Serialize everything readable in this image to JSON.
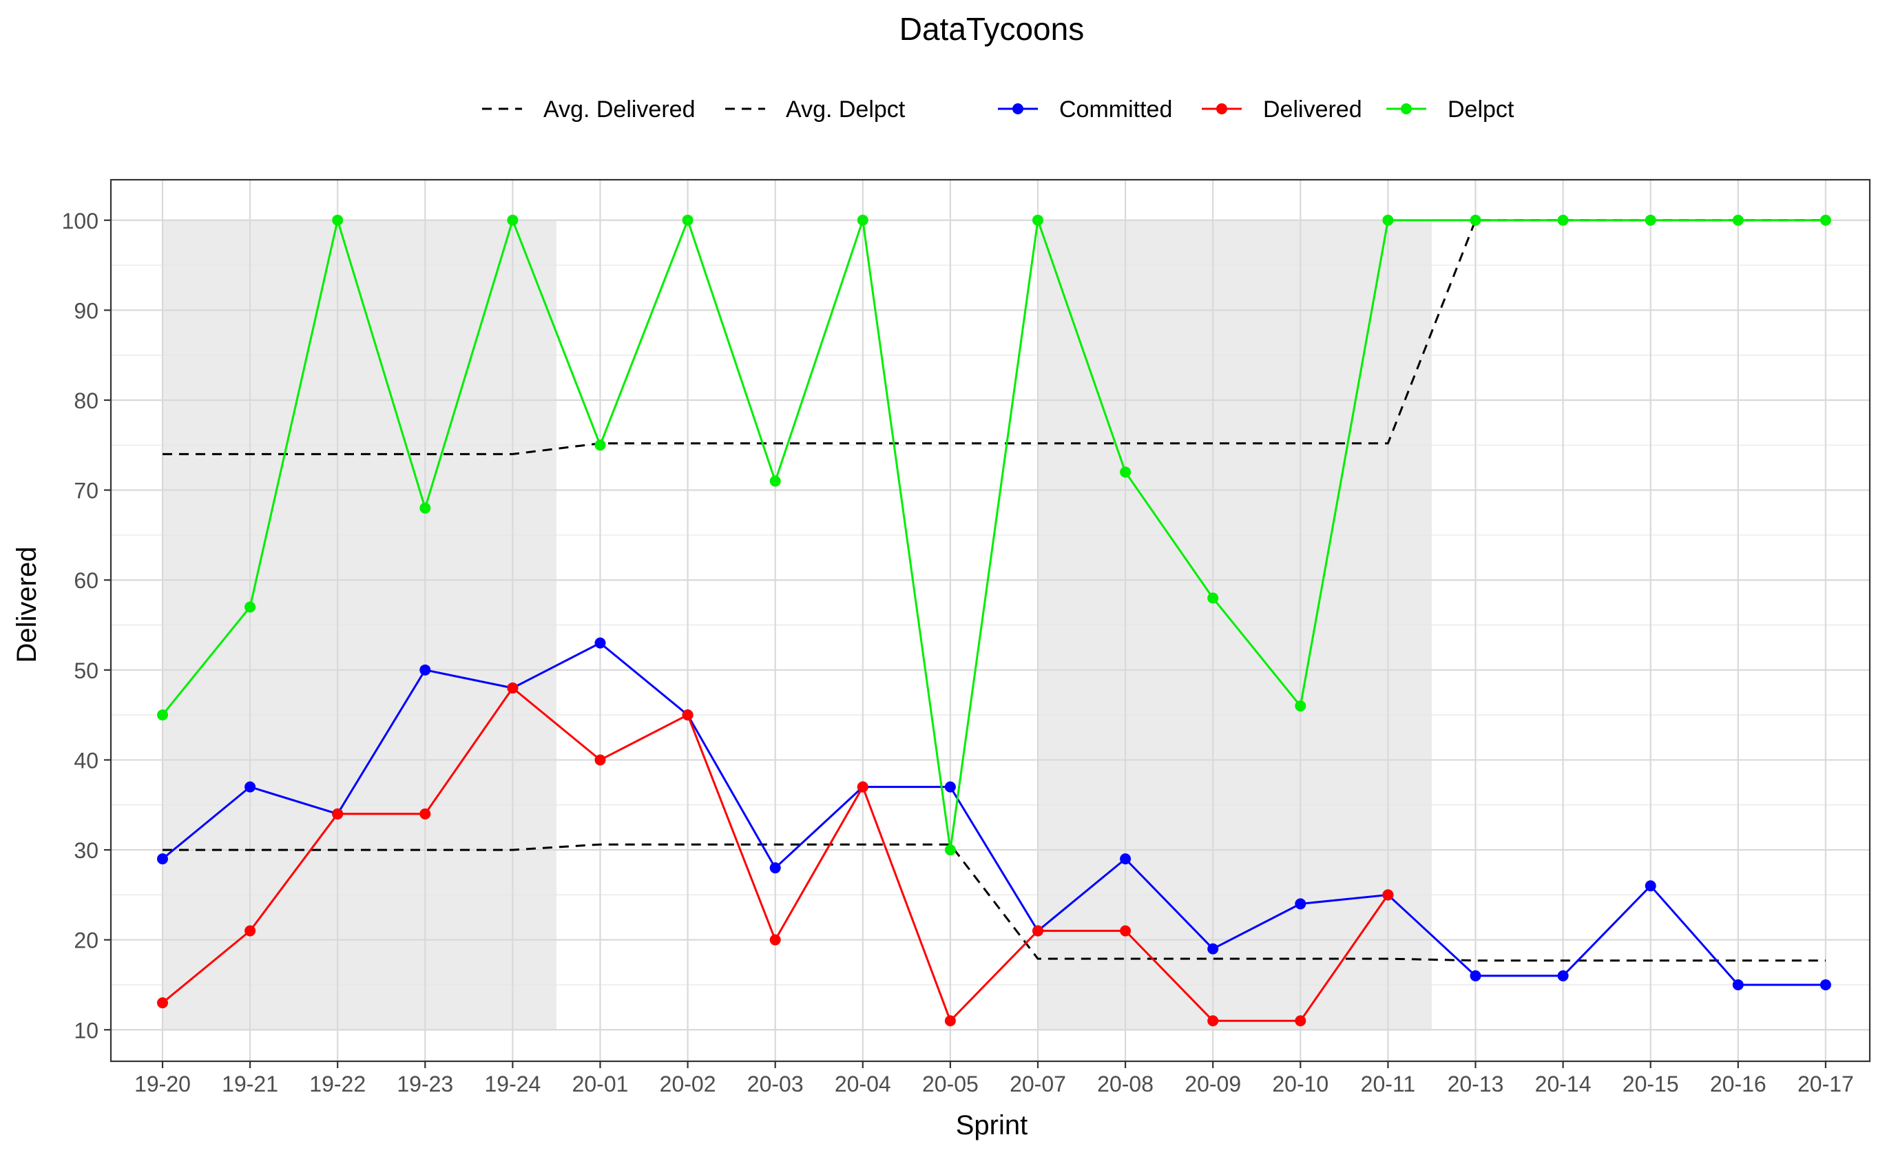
{
  "chart_data": {
    "type": "line",
    "title": "DataTycoons",
    "xlabel": "Sprint",
    "ylabel": "Delivered",
    "categories": [
      "19-20",
      "19-21",
      "19-22",
      "19-23",
      "19-24",
      "20-01",
      "20-02",
      "20-03",
      "20-04",
      "20-05",
      "20-07",
      "20-08",
      "20-09",
      "20-10",
      "20-11",
      "20-13",
      "20-14",
      "20-15",
      "20-16",
      "20-17"
    ],
    "ylim": [
      6.5,
      104.5
    ],
    "yticks": [
      10,
      20,
      30,
      40,
      50,
      60,
      70,
      80,
      90,
      100
    ],
    "grid": true,
    "legend_position": "top",
    "shaded_bands": [
      {
        "from": "19-20",
        "to": "19-24"
      },
      {
        "from": "20-07",
        "to": "20-11"
      }
    ],
    "series": [
      {
        "name": "Committed",
        "color": "#0000ff",
        "style": "solid-points",
        "values": [
          29,
          37,
          34,
          50,
          48,
          53,
          45,
          28,
          37,
          37,
          21,
          29,
          19,
          24,
          25,
          16,
          16,
          26,
          15,
          15
        ]
      },
      {
        "name": "Delivered",
        "color": "#ff0000",
        "style": "solid-points",
        "values": [
          13,
          21,
          34,
          34,
          48,
          40,
          45,
          20,
          37,
          11,
          21,
          21,
          11,
          11,
          25,
          null,
          null,
          null,
          null,
          null
        ]
      },
      {
        "name": "Delpct",
        "color": "#00ee00",
        "style": "solid-points",
        "values": [
          45,
          57,
          100,
          68,
          100,
          75,
          100,
          71,
          100,
          30,
          100,
          72,
          58,
          46,
          100,
          100,
          100,
          100,
          100,
          100
        ]
      }
    ],
    "reference_lines": [
      {
        "name": "Avg. Delivered",
        "color": "#000000",
        "style": "dashed",
        "values": [
          30,
          30,
          30,
          30,
          30,
          30.6,
          30.6,
          30.6,
          30.6,
          30.6,
          17.9,
          17.9,
          17.9,
          17.9,
          17.9,
          17.7,
          17.7,
          17.7,
          17.7,
          17.7
        ]
      },
      {
        "name": "Avg. Delpct",
        "color": "#000000",
        "style": "dashed",
        "values": [
          74,
          74,
          74,
          74,
          74,
          75.2,
          75.2,
          75.2,
          75.2,
          75.2,
          75.2,
          75.2,
          75.2,
          75.2,
          75.2,
          100,
          100,
          100,
          100,
          100
        ]
      }
    ]
  }
}
